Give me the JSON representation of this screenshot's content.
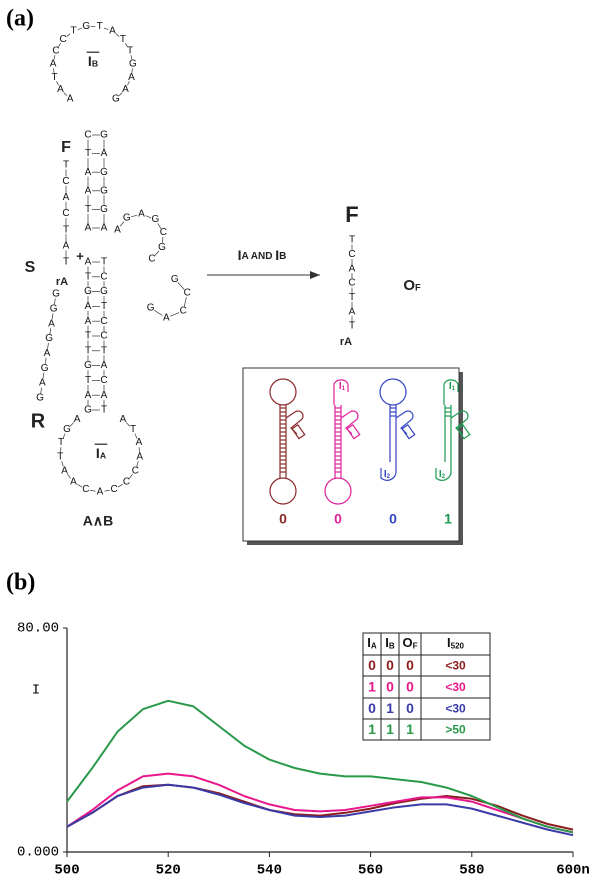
{
  "panel_a": {
    "label": "(a)",
    "strands": [
      "AATACCTGTATTGAAG",
      "CTAATA",
      "GAGGGA",
      "AGAGCGC",
      "GCCAG",
      "ATGAATTGTAG",
      "TCGTCCTACAT",
      "AGTTAACACCCAATA",
      "TCACTAT",
      "GGAGAGAG",
      "TCACTAT"
    ],
    "loop_b_label": {
      "text": "I",
      "sub": "B"
    },
    "loop_a_label": {
      "text": "I",
      "sub": "A"
    },
    "f_label": "F",
    "s_label": "S",
    "ra_label": "rA",
    "plus": "+",
    "r_label": "R",
    "gate_label": "A∧B",
    "arrow_label": [
      {
        "text": "I",
        "small": false
      },
      {
        "text": "A AND ",
        "small": true
      },
      {
        "text": "I",
        "small": false
      },
      {
        "text": "B",
        "small": true
      }
    ],
    "product_f": "F",
    "product_ra": "rA",
    "product_label": {
      "text": "O",
      "sub": "F"
    },
    "inset": {
      "items": [
        {
          "color": "#8b2a2a",
          "output": "0",
          "top": null,
          "bottom": null
        },
        {
          "color": "#e0209c",
          "output": "0",
          "top": {
            "text": "I",
            "sub": "1"
          },
          "bottom": null
        },
        {
          "color": "#3344c4",
          "output": "0",
          "top": null,
          "bottom": {
            "text": "I",
            "sub": "2"
          }
        },
        {
          "color": "#1c9a52",
          "output": "1",
          "top": {
            "text": "I",
            "sub": "1"
          },
          "bottom": {
            "text": "I",
            "sub": "2"
          }
        }
      ]
    }
  },
  "chart_data": {
    "type": "line",
    "panel_label": "(b)",
    "y_label": "I",
    "x": [
      500,
      505,
      510,
      515,
      520,
      525,
      530,
      535,
      540,
      545,
      550,
      555,
      560,
      565,
      570,
      575,
      580,
      585,
      590,
      595,
      600
    ],
    "series": [
      {
        "color": "#8b1e1e",
        "values": [
          9,
          14,
          20,
          23.5,
          24,
          23,
          21,
          18,
          15,
          13.5,
          13,
          14,
          15.5,
          17.5,
          19,
          20,
          19,
          16.5,
          13,
          10,
          8
        ]
      },
      {
        "color": "#e8188c",
        "values": [
          9,
          15,
          22,
          27,
          28,
          27,
          24,
          20,
          17,
          15,
          14.5,
          15,
          16.5,
          18,
          19.5,
          19.5,
          18,
          15,
          12,
          9,
          7
        ]
      },
      {
        "color": "#3a3aa8",
        "values": [
          9,
          14,
          20,
          23,
          24,
          23,
          20.5,
          17.5,
          15,
          13,
          12.5,
          13,
          14.5,
          16,
          17,
          17,
          15.5,
          13,
          10.5,
          8,
          6
        ]
      },
      {
        "color": "#2a9a4a",
        "values": [
          18,
          30,
          43,
          51,
          54,
          52,
          45,
          38,
          33,
          30,
          28,
          27,
          27,
          26,
          25,
          23,
          20,
          16,
          12,
          9,
          7
        ]
      }
    ],
    "xlim": [
      500,
      600
    ],
    "ylim": [
      0,
      80
    ],
    "xticks": [
      500,
      520,
      540,
      560,
      580,
      {
        "value": 600,
        "label": "600n"
      }
    ],
    "yticks": [
      {
        "value": 0,
        "label": "0.000"
      },
      {
        "value": 80,
        "label": "80.00"
      }
    ],
    "table": {
      "header": [
        {
          "text": "I",
          "sub": "A"
        },
        {
          "text": "I",
          "sub": "B"
        },
        {
          "text": "O",
          "sub": "F"
        },
        {
          "text": "I",
          "sub": "520"
        }
      ],
      "rows": [
        [
          "0",
          "0",
          "0",
          "<30"
        ],
        [
          "1",
          "0",
          "0",
          "<30"
        ],
        [
          "0",
          "1",
          "0",
          "<30"
        ],
        [
          "1",
          "1",
          "1",
          ">50"
        ]
      ]
    }
  }
}
